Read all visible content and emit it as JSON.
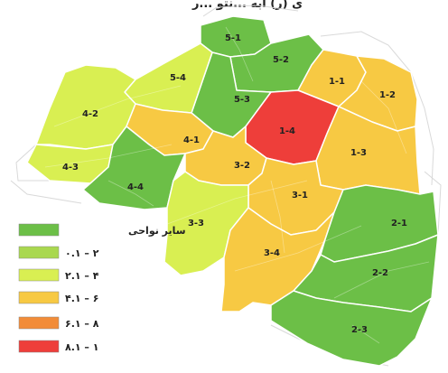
{
  "title_fragment": "ی (ر) آبه ...نتو ...ر",
  "districts": [
    {
      "id": "5-1",
      "label": "5-1",
      "class_index": 0
    },
    {
      "id": "5-2",
      "label": "5-2",
      "class_index": 0
    },
    {
      "id": "5-3",
      "label": "5-3",
      "class_index": 0
    },
    {
      "id": "5-4",
      "label": "5-4",
      "class_index": 2
    },
    {
      "id": "4-2",
      "label": "4-2",
      "class_index": 2
    },
    {
      "id": "4-3",
      "label": "4-3",
      "class_index": 2
    },
    {
      "id": "4-1",
      "label": "4-1",
      "class_index": 3
    },
    {
      "id": "4-4",
      "label": "4-4",
      "class_index": 0
    },
    {
      "id": "1-1",
      "label": "1-1",
      "class_index": 3
    },
    {
      "id": "1-2",
      "label": "1-2",
      "class_index": 3
    },
    {
      "id": "1-3",
      "label": "1-3",
      "class_index": 3
    },
    {
      "id": "1-4",
      "label": "1-4",
      "class_index": 5
    },
    {
      "id": "3-2",
      "label": "3-2",
      "class_index": 3
    },
    {
      "id": "3-1",
      "label": "3-1",
      "class_index": 3
    },
    {
      "id": "3-3",
      "label": "3-3",
      "class_index": 2
    },
    {
      "id": "3-4",
      "label": "3-4",
      "class_index": 3
    },
    {
      "id": "2-1",
      "label": "2-1",
      "class_index": 0
    },
    {
      "id": "2-2",
      "label": "2-2",
      "class_index": 0
    },
    {
      "id": "2-3",
      "label": "2-3",
      "class_index": 0
    }
  ],
  "legend": [
    {
      "label": "سایر نواحی",
      "color": "#6cbf47"
    },
    {
      "label": "۰.۱ – ۲",
      "color": "#a9d84f"
    },
    {
      "label": "۲.۱ – ۴",
      "color": "#d9ef52"
    },
    {
      "label": "۴.۱ – ۶",
      "color": "#f7c943"
    },
    {
      "label": "۶.۱ – ۸",
      "color": "#f28c38"
    },
    {
      "label": "۸.۱ – ۱",
      "color": "#ee3e3a"
    }
  ]
}
